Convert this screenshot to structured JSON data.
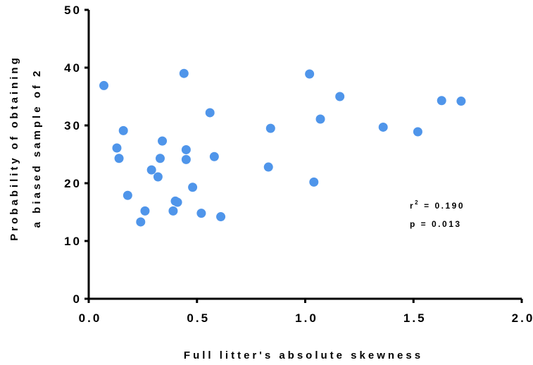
{
  "chart_data": {
    "type": "scatter",
    "xlabel": "Full litter's absolute skewness",
    "ylabel_line1": "Probability of obtaining",
    "ylabel_line2": "a biased sample of 2",
    "xlim": [
      0.0,
      2.0
    ],
    "ylim": [
      0,
      50
    ],
    "x_ticks": [
      "0.0",
      "0.5",
      "1.0",
      "1.5",
      "2.0"
    ],
    "y_ticks": [
      "0",
      "10",
      "20",
      "30",
      "40",
      "50"
    ],
    "annotation": {
      "r2_label": "r",
      "r2_exp": "2",
      "r2_value": "= 0.190",
      "p_text": "p = 0.013"
    },
    "point_color": "#4f95ea",
    "points": [
      {
        "x": 0.07,
        "y": 36.9
      },
      {
        "x": 0.13,
        "y": 26.1
      },
      {
        "x": 0.14,
        "y": 24.3
      },
      {
        "x": 0.16,
        "y": 29.1
      },
      {
        "x": 0.18,
        "y": 17.9
      },
      {
        "x": 0.24,
        "y": 13.3
      },
      {
        "x": 0.26,
        "y": 15.2
      },
      {
        "x": 0.29,
        "y": 22.3
      },
      {
        "x": 0.32,
        "y": 21.1
      },
      {
        "x": 0.33,
        "y": 24.3
      },
      {
        "x": 0.34,
        "y": 27.3
      },
      {
        "x": 0.39,
        "y": 15.2
      },
      {
        "x": 0.4,
        "y": 16.9
      },
      {
        "x": 0.41,
        "y": 16.7
      },
      {
        "x": 0.44,
        "y": 39.0
      },
      {
        "x": 0.45,
        "y": 25.8
      },
      {
        "x": 0.45,
        "y": 24.1
      },
      {
        "x": 0.48,
        "y": 19.3
      },
      {
        "x": 0.52,
        "y": 14.8
      },
      {
        "x": 0.56,
        "y": 32.2
      },
      {
        "x": 0.58,
        "y": 24.6
      },
      {
        "x": 0.61,
        "y": 14.2
      },
      {
        "x": 0.83,
        "y": 22.8
      },
      {
        "x": 0.84,
        "y": 29.5
      },
      {
        "x": 1.02,
        "y": 38.9
      },
      {
        "x": 1.04,
        "y": 20.2
      },
      {
        "x": 1.07,
        "y": 31.1
      },
      {
        "x": 1.16,
        "y": 35.0
      },
      {
        "x": 1.36,
        "y": 29.7
      },
      {
        "x": 1.52,
        "y": 28.9
      },
      {
        "x": 1.63,
        "y": 34.3
      },
      {
        "x": 1.72,
        "y": 34.2
      }
    ]
  }
}
